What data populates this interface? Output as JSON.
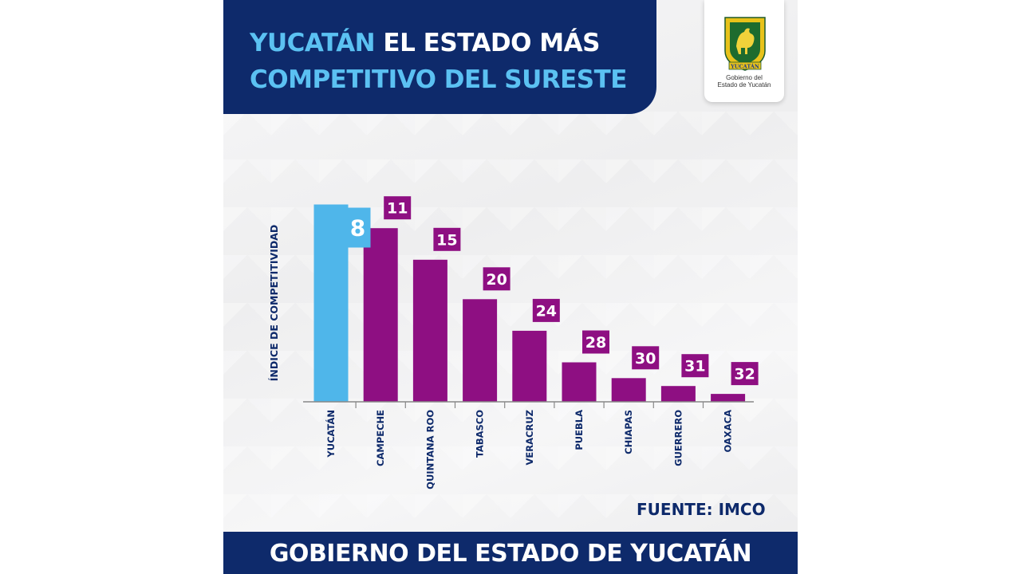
{
  "header": {
    "title_accent": "YUCATÁN",
    "title_rest": " EL ESTADO MÁS",
    "title_line_2": "COMPETITIVO DEL SURESTE"
  },
  "logo": {
    "crest_text": "YUCATÁN",
    "line_1": "Gobierno del",
    "line_2": "Estado de Yucatán"
  },
  "source": "FUENTE: IMCO",
  "footer": "GOBIERNO DEL ESTADO DE YUCATÁN",
  "colors": {
    "navy": "#0e2a6b",
    "highlight": "#4fb6ea",
    "bar": "#8e0f82",
    "label_box": "#8e0f82"
  },
  "chart_data": {
    "type": "bar",
    "title": "YUCATÁN EL ESTADO MÁS COMPETITIVO DEL SURESTE",
    "xlabel": "",
    "ylabel": "ÍNDICE DE COMPETITIVIDAD",
    "categories": [
      "YUCATÁN",
      "CAMPECHE",
      "QUINTANA ROO",
      "TABASCO",
      "VERACRUZ",
      "PUEBLA",
      "CHIAPAS",
      "GUERRERO",
      "OAXACA"
    ],
    "values": [
      8,
      11,
      15,
      20,
      24,
      28,
      30,
      31,
      32
    ],
    "highlight_category": "YUCATÁN",
    "note": "Ranking position; lower value drawn as taller bar",
    "grid": false,
    "legend": "none"
  }
}
